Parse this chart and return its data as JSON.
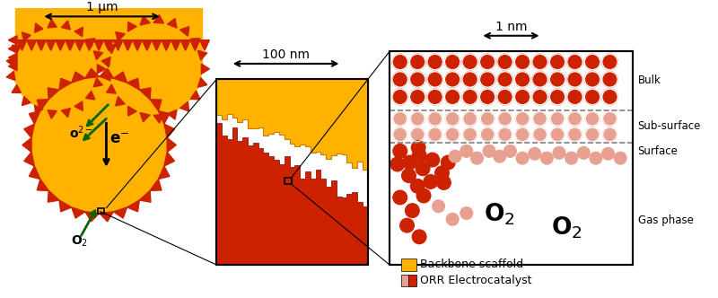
{
  "bg_color": "#ffffff",
  "gold_color": "#FFB300",
  "red_color": "#CC2200",
  "red_light": "#E8A090",
  "green_color": "#006600",
  "legend_orr": "ORR Electrocatalyst",
  "legend_backbone": "Backbone scaffold",
  "label_gas": "Gas phase",
  "label_surface": "Surface",
  "label_subsurface": "Sub-surface",
  "label_bulk": "Bulk",
  "scale1": "1 μm",
  "scale2": "100 nm",
  "scale3": "1 nm"
}
